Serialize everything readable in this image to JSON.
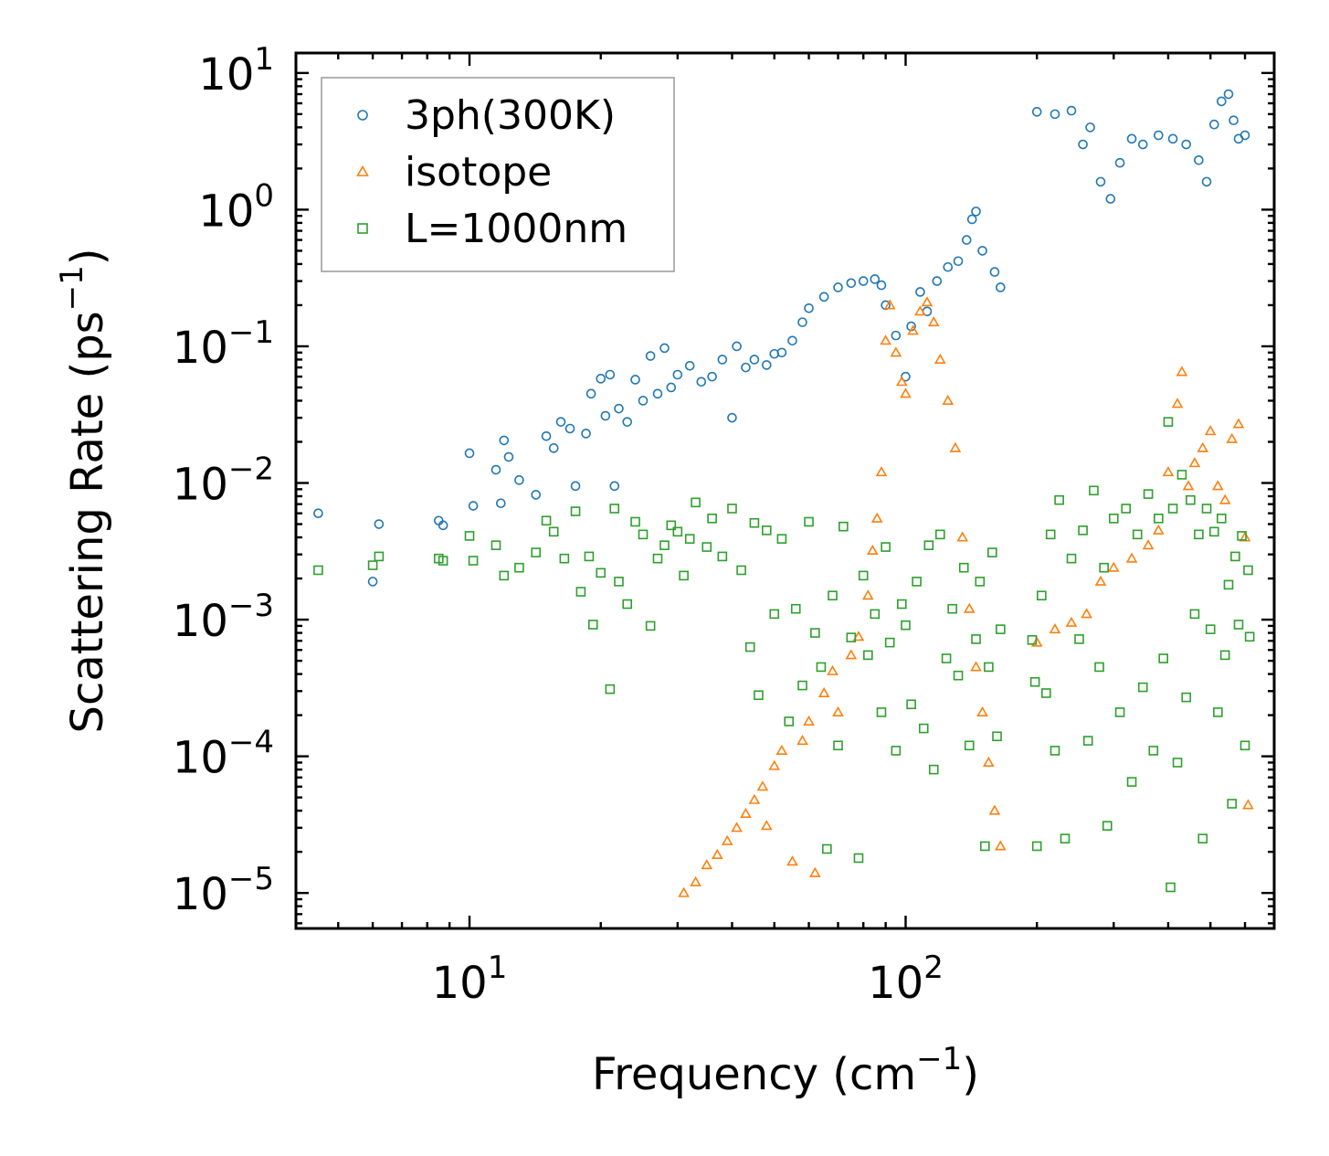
{
  "chart_data": {
    "type": "scatter",
    "title": "",
    "xlabel": "Frequency (cm",
    "xlabel_sup": "−1",
    "xlabel_tail": ")",
    "ylabel": "Scattering Rate (ps",
    "ylabel_sup": "−1",
    "ylabel_tail": ")",
    "xscale": "log",
    "yscale": "log",
    "xlim": [
      4,
      700
    ],
    "ylim": [
      5.5e-06,
      14
    ],
    "x_ticks": [
      {
        "value": 10,
        "base": "10",
        "exp": "1"
      },
      {
        "value": 100,
        "base": "10",
        "exp": "2"
      }
    ],
    "y_ticks": [
      {
        "value": 10,
        "base": "10",
        "exp": "1"
      },
      {
        "value": 1,
        "base": "10",
        "exp": "0"
      },
      {
        "value": 0.1,
        "base": "10",
        "exp": "−1"
      },
      {
        "value": 0.01,
        "base": "10",
        "exp": "−2"
      },
      {
        "value": 0.001,
        "base": "10",
        "exp": "−3"
      },
      {
        "value": 0.0001,
        "base": "10",
        "exp": "−4"
      },
      {
        "value": 1e-05,
        "base": "10",
        "exp": "−5"
      }
    ],
    "legend_position": "top-left",
    "series": [
      {
        "name": "3ph(300K)",
        "marker": "circle",
        "color": "#1f77b4",
        "points": [
          [
            4.5,
            0.006
          ],
          [
            6.0,
            0.0019
          ],
          [
            6.2,
            0.005
          ],
          [
            8.5,
            0.0053
          ],
          [
            8.7,
            0.0049
          ],
          [
            10.0,
            0.0165
          ],
          [
            10.2,
            0.0068
          ],
          [
            11.5,
            0.0125
          ],
          [
            11.8,
            0.0071
          ],
          [
            12.0,
            0.0205
          ],
          [
            12.3,
            0.0155
          ],
          [
            13.0,
            0.0105
          ],
          [
            14.2,
            0.0082
          ],
          [
            15.0,
            0.022
          ],
          [
            15.6,
            0.018
          ],
          [
            16.2,
            0.028
          ],
          [
            17.0,
            0.025
          ],
          [
            17.5,
            0.0095
          ],
          [
            18.5,
            0.023
          ],
          [
            19.0,
            0.045
          ],
          [
            20.0,
            0.058
          ],
          [
            20.5,
            0.031
          ],
          [
            21.0,
            0.062
          ],
          [
            21.5,
            0.0095
          ],
          [
            22.0,
            0.035
          ],
          [
            23.0,
            0.028
          ],
          [
            24.0,
            0.057
          ],
          [
            25.0,
            0.04
          ],
          [
            26.0,
            0.085
          ],
          [
            27.0,
            0.045
          ],
          [
            28.0,
            0.097
          ],
          [
            29.0,
            0.05
          ],
          [
            30.0,
            0.062
          ],
          [
            32.0,
            0.072
          ],
          [
            34.0,
            0.055
          ],
          [
            36.0,
            0.06
          ],
          [
            38.0,
            0.08
          ],
          [
            40.0,
            0.03
          ],
          [
            41.0,
            0.1
          ],
          [
            43.0,
            0.07
          ],
          [
            45.0,
            0.08
          ],
          [
            48.0,
            0.073
          ],
          [
            50.0,
            0.088
          ],
          [
            52.0,
            0.09
          ],
          [
            55.0,
            0.11
          ],
          [
            58.0,
            0.15
          ],
          [
            60.0,
            0.19
          ],
          [
            65.0,
            0.23
          ],
          [
            70.0,
            0.27
          ],
          [
            75.0,
            0.29
          ],
          [
            80.0,
            0.3
          ],
          [
            85.0,
            0.31
          ],
          [
            88.0,
            0.28
          ],
          [
            90.0,
            0.2
          ],
          [
            95.0,
            0.12
          ],
          [
            100.0,
            0.06
          ],
          [
            103.0,
            0.14
          ],
          [
            108.0,
            0.25
          ],
          [
            112.0,
            0.18
          ],
          [
            118.0,
            0.3
          ],
          [
            125.0,
            0.38
          ],
          [
            132.0,
            0.42
          ],
          [
            138.0,
            0.6
          ],
          [
            142.0,
            0.85
          ],
          [
            145.0,
            0.97
          ],
          [
            150.0,
            0.5
          ],
          [
            160.0,
            0.35
          ],
          [
            165.0,
            0.27
          ],
          [
            200.0,
            5.2
          ],
          [
            220.0,
            5.0
          ],
          [
            240.0,
            5.3
          ],
          [
            255.0,
            3.0
          ],
          [
            265.0,
            4.0
          ],
          [
            280.0,
            1.6
          ],
          [
            295.0,
            1.2
          ],
          [
            310.0,
            2.2
          ],
          [
            330.0,
            3.3
          ],
          [
            350.0,
            3.0
          ],
          [
            380.0,
            3.5
          ],
          [
            410.0,
            3.3
          ],
          [
            440.0,
            3.0
          ],
          [
            470.0,
            2.3
          ],
          [
            490.0,
            1.6
          ],
          [
            510.0,
            4.2
          ],
          [
            530.0,
            6.2
          ],
          [
            550.0,
            7.0
          ],
          [
            565.0,
            4.5
          ],
          [
            580.0,
            3.3
          ],
          [
            600.0,
            3.5
          ]
        ]
      },
      {
        "name": "isotope",
        "marker": "triangle",
        "color": "#ff7f0e",
        "points": [
          [
            31.0,
            1e-05
          ],
          [
            33.0,
            1.2e-05
          ],
          [
            35.0,
            1.6e-05
          ],
          [
            37.0,
            1.9e-05
          ],
          [
            39.0,
            2.4e-05
          ],
          [
            41.0,
            3e-05
          ],
          [
            43.0,
            3.8e-05
          ],
          [
            45.0,
            4.8e-05
          ],
          [
            47.0,
            6e-05
          ],
          [
            48.0,
            3.1e-05
          ],
          [
            50.0,
            8.5e-05
          ],
          [
            52.0,
            0.00011
          ],
          [
            55.0,
            1.7e-05
          ],
          [
            58.0,
            0.00013
          ],
          [
            60.0,
            0.00018
          ],
          [
            62.0,
            1.4e-05
          ],
          [
            65.0,
            0.00029
          ],
          [
            68.0,
            0.00042
          ],
          [
            70.0,
            0.00021
          ],
          [
            75.0,
            0.00055
          ],
          [
            78.0,
            0.00075
          ],
          [
            82.0,
            0.0015
          ],
          [
            84.0,
            0.0032
          ],
          [
            86.0,
            0.0055
          ],
          [
            88.0,
            0.012
          ],
          [
            90.0,
            0.11
          ],
          [
            92.0,
            0.2
          ],
          [
            95.0,
            0.09
          ],
          [
            98.0,
            0.055
          ],
          [
            100.0,
            0.045
          ],
          [
            104.0,
            0.13
          ],
          [
            108.0,
            0.18
          ],
          [
            112.0,
            0.21
          ],
          [
            116.0,
            0.15
          ],
          [
            120.0,
            0.08
          ],
          [
            125.0,
            0.04
          ],
          [
            130.0,
            0.018
          ],
          [
            135.0,
            0.004
          ],
          [
            140.0,
            0.0012
          ],
          [
            145.0,
            0.00045
          ],
          [
            150.0,
            0.00021
          ],
          [
            155.0,
            9e-05
          ],
          [
            160.0,
            4e-05
          ],
          [
            165.0,
            2.2e-05
          ],
          [
            200.0,
            0.00068
          ],
          [
            220.0,
            0.00085
          ],
          [
            240.0,
            0.00095
          ],
          [
            260.0,
            0.0011
          ],
          [
            280.0,
            0.0019
          ],
          [
            300.0,
            0.0024
          ],
          [
            330.0,
            0.0028
          ],
          [
            360.0,
            0.0035
          ],
          [
            380.0,
            0.0045
          ],
          [
            400.0,
            0.012
          ],
          [
            420.0,
            0.038
          ],
          [
            430.0,
            0.065
          ],
          [
            445.0,
            0.0095
          ],
          [
            460.0,
            0.014
          ],
          [
            480.0,
            0.018
          ],
          [
            500.0,
            0.024
          ],
          [
            520.0,
            0.0095
          ],
          [
            540.0,
            0.0075
          ],
          [
            560.0,
            0.021
          ],
          [
            580.0,
            0.027
          ],
          [
            600.0,
            0.004
          ],
          [
            610.0,
            4.4e-05
          ]
        ]
      },
      {
        "name": "L=1000nm",
        "marker": "square",
        "color": "#2ca02c",
        "points": [
          [
            4.5,
            0.0023
          ],
          [
            6.0,
            0.0025
          ],
          [
            6.2,
            0.0029
          ],
          [
            8.5,
            0.0028
          ],
          [
            8.7,
            0.0027
          ],
          [
            10.0,
            0.0041
          ],
          [
            10.2,
            0.0027
          ],
          [
            11.5,
            0.0035
          ],
          [
            12.0,
            0.0021
          ],
          [
            13.0,
            0.0024
          ],
          [
            14.2,
            0.0031
          ],
          [
            15.0,
            0.0053
          ],
          [
            15.6,
            0.0044
          ],
          [
            16.5,
            0.0028
          ],
          [
            17.5,
            0.0062
          ],
          [
            18.0,
            0.0016
          ],
          [
            18.8,
            0.0029
          ],
          [
            19.2,
            0.00092
          ],
          [
            20.0,
            0.0022
          ],
          [
            21.0,
            0.00031
          ],
          [
            21.5,
            0.0065
          ],
          [
            22.0,
            0.0019
          ],
          [
            23.0,
            0.0013
          ],
          [
            24.0,
            0.0052
          ],
          [
            25.0,
            0.0042
          ],
          [
            26.0,
            0.0009
          ],
          [
            27.0,
            0.0028
          ],
          [
            28.0,
            0.0035
          ],
          [
            29.0,
            0.0049
          ],
          [
            30.0,
            0.0044
          ],
          [
            31.0,
            0.0021
          ],
          [
            32.0,
            0.0039
          ],
          [
            33.0,
            0.0072
          ],
          [
            35.0,
            0.0034
          ],
          [
            36.0,
            0.0055
          ],
          [
            38.0,
            0.0029
          ],
          [
            40.0,
            0.0065
          ],
          [
            42.0,
            0.0023
          ],
          [
            44.0,
            0.00063
          ],
          [
            45.0,
            0.0051
          ],
          [
            46.0,
            0.00028
          ],
          [
            48.0,
            0.0045
          ],
          [
            50.0,
            0.0011
          ],
          [
            52.0,
            0.0039
          ],
          [
            54.0,
            0.00018
          ],
          [
            56.0,
            0.0012
          ],
          [
            58.0,
            0.00033
          ],
          [
            60.0,
            0.0052
          ],
          [
            62.0,
            0.0008
          ],
          [
            64.0,
            0.00045
          ],
          [
            66.0,
            2.1e-05
          ],
          [
            68.0,
            0.0015
          ],
          [
            70.0,
            0.00012
          ],
          [
            72.0,
            0.0048
          ],
          [
            75.0,
            0.00074
          ],
          [
            78.0,
            1.8e-05
          ],
          [
            80.0,
            0.0021
          ],
          [
            82.0,
            0.00055
          ],
          [
            85.0,
            0.0011
          ],
          [
            88.0,
            0.00021
          ],
          [
            90.0,
            0.0034
          ],
          [
            92.0,
            0.00068
          ],
          [
            95.0,
            0.00011
          ],
          [
            98.0,
            0.0013
          ],
          [
            100.0,
            0.00091
          ],
          [
            103.0,
            0.00024
          ],
          [
            106.0,
            0.0019
          ],
          [
            110.0,
            0.00016
          ],
          [
            113.0,
            0.0035
          ],
          [
            116.0,
            8e-05
          ],
          [
            120.0,
            0.0042
          ],
          [
            124.0,
            0.00052
          ],
          [
            128.0,
            0.0012
          ],
          [
            132.0,
            0.00039
          ],
          [
            136.0,
            0.0024
          ],
          [
            140.0,
            0.00012
          ],
          [
            145.0,
            0.00072
          ],
          [
            148.0,
            0.0019
          ],
          [
            152.0,
            2.2e-05
          ],
          [
            155.0,
            0.00045
          ],
          [
            158.0,
            0.0031
          ],
          [
            162.0,
            0.00014
          ],
          [
            165.0,
            0.00085
          ],
          [
            195.0,
            0.00071
          ],
          [
            198.0,
            0.00035
          ],
          [
            200.0,
            2.2e-05
          ],
          [
            205.0,
            0.0015
          ],
          [
            210.0,
            0.00029
          ],
          [
            215.0,
            0.0042
          ],
          [
            220.0,
            0.00011
          ],
          [
            225.0,
            0.0075
          ],
          [
            232.0,
            2.5e-05
          ],
          [
            240.0,
            0.0028
          ],
          [
            250.0,
            0.00072
          ],
          [
            255.0,
            0.0045
          ],
          [
            262.0,
            0.00013
          ],
          [
            270.0,
            0.0088
          ],
          [
            278.0,
            0.00045
          ],
          [
            285.0,
            0.0024
          ],
          [
            290.0,
            3.1e-05
          ],
          [
            300.0,
            0.0055
          ],
          [
            310.0,
            0.00021
          ],
          [
            320.0,
            0.0065
          ],
          [
            330.0,
            6.5e-05
          ],
          [
            340.0,
            0.0042
          ],
          [
            350.0,
            0.00032
          ],
          [
            360.0,
            0.0083
          ],
          [
            370.0,
            0.00011
          ],
          [
            380.0,
            0.0055
          ],
          [
            390.0,
            0.00052
          ],
          [
            400.0,
            0.028
          ],
          [
            405.0,
            1.1e-05
          ],
          [
            410.0,
            0.0065
          ],
          [
            420.0,
            9e-05
          ],
          [
            430.0,
            0.0115
          ],
          [
            440.0,
            0.00027
          ],
          [
            450.0,
            0.0075
          ],
          [
            460.0,
            0.0011
          ],
          [
            470.0,
            0.0042
          ],
          [
            480.0,
            2.5e-05
          ],
          [
            490.0,
            0.0065
          ],
          [
            500.0,
            0.00085
          ],
          [
            510.0,
            0.0044
          ],
          [
            520.0,
            0.00021
          ],
          [
            530.0,
            0.0055
          ],
          [
            540.0,
            0.00055
          ],
          [
            550.0,
            0.0018
          ],
          [
            560.0,
            4.5e-05
          ],
          [
            570.0,
            0.0029
          ],
          [
            580.0,
            0.00092
          ],
          [
            590.0,
            0.0041
          ],
          [
            600.0,
            0.00012
          ],
          [
            610.0,
            0.0023
          ],
          [
            615.0,
            0.00075
          ]
        ]
      }
    ]
  }
}
